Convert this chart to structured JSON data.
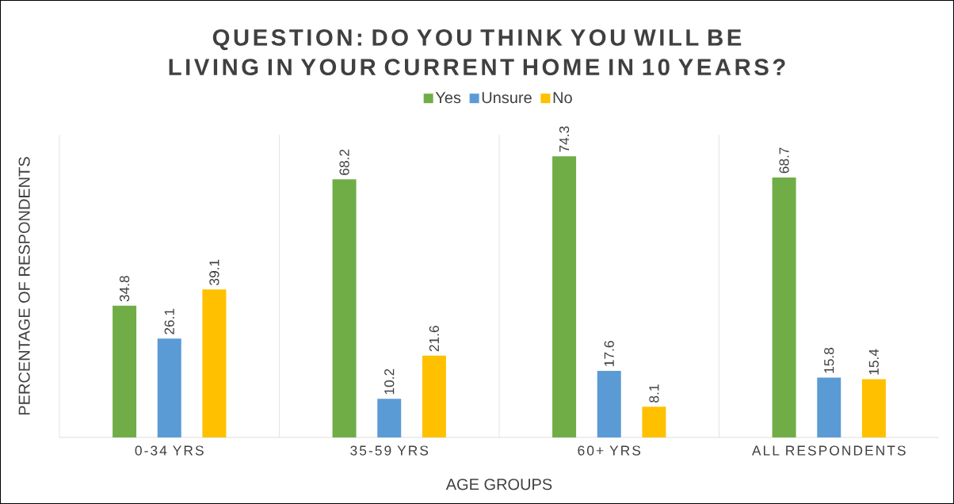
{
  "chart_data": {
    "type": "bar",
    "title": "QUESTION: DO YOU THINK YOU WILL BE LIVING IN YOUR CURRENT HOME IN 10 YEARS?",
    "xlabel": "AGE GROUPS",
    "ylabel": "PERCENTAGE OF RESPONDENTS",
    "categories": [
      "0-34 YRS",
      "35-59 YRS",
      "60+ YRS",
      "ALL RESPONDENTS"
    ],
    "series": [
      {
        "name": "Yes",
        "color": "#70ad47",
        "values": [
          34.8,
          68.2,
          74.3,
          68.7
        ]
      },
      {
        "name": "Unsure",
        "color": "#5b9bd5",
        "values": [
          26.1,
          10.2,
          17.6,
          15.8
        ]
      },
      {
        "name": "No",
        "color": "#ffc000",
        "values": [
          39.1,
          21.6,
          8.1,
          15.4
        ]
      }
    ],
    "ylim": [
      0,
      80
    ],
    "data_labels": true,
    "grid": "x",
    "legend": "top",
    "tick_labels": "x"
  }
}
